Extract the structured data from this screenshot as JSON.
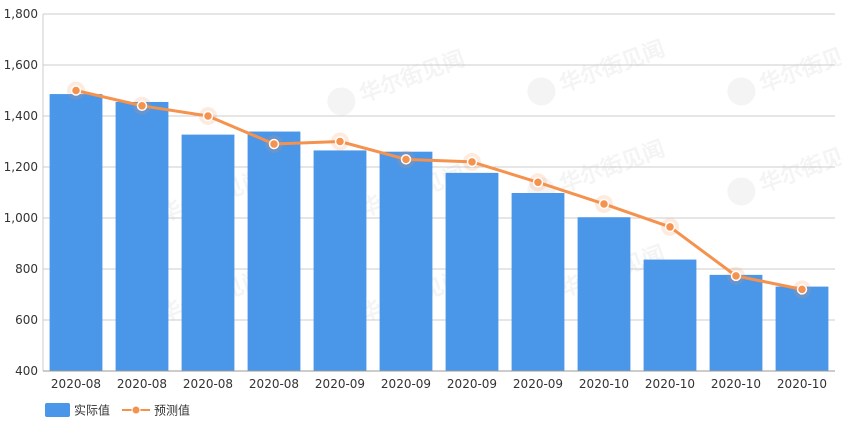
{
  "chart_data": {
    "type": "bar",
    "categories": [
      "2020-08",
      "2020-08",
      "2020-08",
      "2020-08",
      "2020-09",
      "2020-09",
      "2020-09",
      "2020-09",
      "2020-10",
      "2020-10",
      "2020-10",
      "2020-10"
    ],
    "series": [
      {
        "name": "实际值",
        "type": "bar",
        "color": "#4a96e8",
        "values": [
          1486,
          1455,
          1327,
          1339,
          1265,
          1260,
          1177,
          1098,
          1003,
          837,
          777,
          731
        ]
      },
      {
        "name": "预测值",
        "type": "line",
        "color": "#f5924e",
        "values": [
          1500,
          1440,
          1400,
          1290,
          1300,
          1230,
          1220,
          1140,
          1055,
          965,
          773,
          720
        ]
      }
    ],
    "ylim": [
      400,
      1800
    ],
    "yticks": [
      "400",
      "600",
      "800",
      "1,000",
      "1,200",
      "1,400",
      "1,600",
      "1,800"
    ],
    "grid": true,
    "legend": "bottom-left",
    "watermark": "华尔街见闻"
  }
}
